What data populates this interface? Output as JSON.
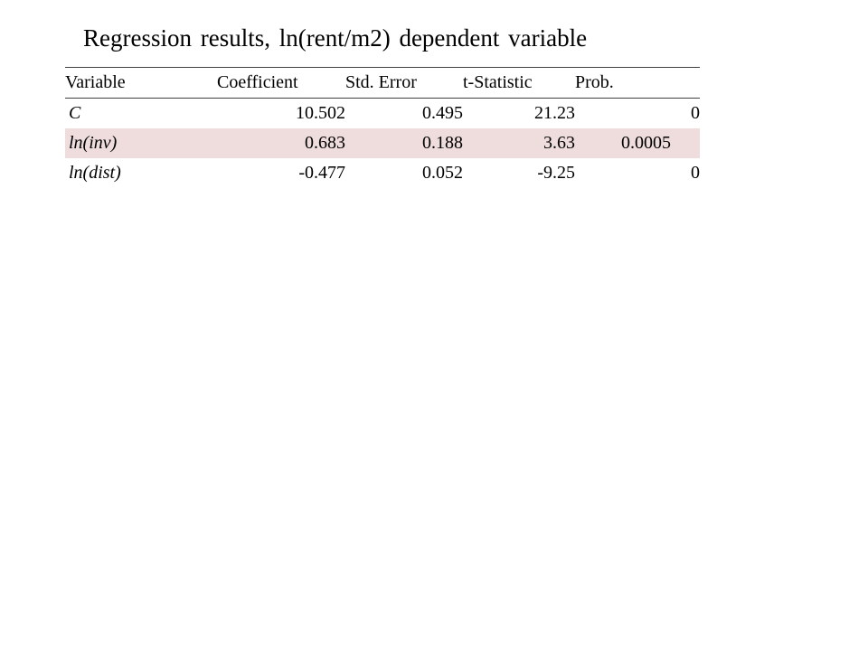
{
  "title": "Regression results, ln(rent/m2) dependent variable",
  "table": {
    "headers": [
      "Variable",
      "Coefficient",
      "Std. Error",
      "t-Statistic",
      "Prob."
    ],
    "rows": [
      {
        "variable": "C",
        "coefficient": "10.502",
        "std_error": "0.495",
        "t_statistic": "21.23",
        "prob": "0"
      },
      {
        "variable": "ln(inv)",
        "coefficient": "0.683",
        "std_error": "0.188",
        "t_statistic": "3.63",
        "prob": "0.0005"
      },
      {
        "variable": "ln(dist)",
        "coefficient": "-0.477",
        "std_error": "0.052",
        "t_statistic": "-9.25",
        "prob": "0"
      }
    ]
  },
  "colors": {
    "shaded_row": "#efdddd",
    "rule": "#404040"
  }
}
